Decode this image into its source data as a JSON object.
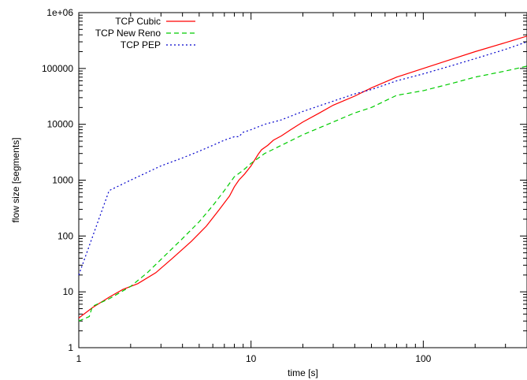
{
  "chart_data": {
    "type": "line",
    "title": "",
    "xlabel": "time [s]",
    "ylabel": "flow size [segments]",
    "xscale": "log",
    "yscale": "log",
    "xlim": [
      1,
      400
    ],
    "ylim": [
      1,
      1000000
    ],
    "x_ticks": [
      {
        "value": 1,
        "label": "1"
      },
      {
        "value": 10,
        "label": "10"
      },
      {
        "value": 100,
        "label": "100"
      }
    ],
    "y_ticks": [
      {
        "value": 1,
        "label": "1"
      },
      {
        "value": 10,
        "label": "10"
      },
      {
        "value": 100,
        "label": "100"
      },
      {
        "value": 1000,
        "label": "1000"
      },
      {
        "value": 10000,
        "label": "10000"
      },
      {
        "value": 100000,
        "label": "100000"
      },
      {
        "value": 1000000,
        "label": "1e+06"
      }
    ],
    "grid": false,
    "legend": "top-left",
    "series": [
      {
        "name": "TCP Cubic",
        "color": "#ff0000",
        "dash": "solid",
        "points": [
          [
            1.0,
            3.4
          ],
          [
            1.2,
            5.2
          ],
          [
            1.5,
            8.0
          ],
          [
            1.8,
            11.0
          ],
          [
            2.2,
            14.0
          ],
          [
            2.8,
            22.0
          ],
          [
            3.5,
            40.0
          ],
          [
            4.5,
            80.0
          ],
          [
            5.5,
            150.0
          ],
          [
            6.5,
            290.0
          ],
          [
            7.5,
            520.0
          ],
          [
            8.0,
            760.0
          ],
          [
            8.5,
            1000.0
          ],
          [
            9.2,
            1300.0
          ],
          [
            10.0,
            1800.0
          ],
          [
            11.0,
            2900.0
          ],
          [
            11.5,
            3500.0
          ],
          [
            12.5,
            4200.0
          ],
          [
            13.5,
            5200.0
          ],
          [
            15.0,
            6200.0
          ],
          [
            17.0,
            8000.0
          ],
          [
            20.0,
            11000.0
          ],
          [
            25.0,
            16000.0
          ],
          [
            30.0,
            22000.0
          ],
          [
            40.0,
            32000.0
          ],
          [
            50.0,
            45000.0
          ],
          [
            70.0,
            70000.0
          ],
          [
            100.0,
            100000.0
          ],
          [
            150.0,
            150000.0
          ],
          [
            200.0,
            200000.0
          ],
          [
            300.0,
            290000.0
          ],
          [
            400.0,
            380000.0
          ]
        ]
      },
      {
        "name": "TCP New Reno",
        "color": "#00cc00",
        "dash": "dashed",
        "points": [
          [
            1.0,
            3.0
          ],
          [
            1.15,
            3.6
          ],
          [
            1.2,
            5.5
          ],
          [
            1.5,
            7.5
          ],
          [
            2.0,
            12.5
          ],
          [
            2.5,
            22.0
          ],
          [
            3.0,
            38.0
          ],
          [
            4.0,
            90.0
          ],
          [
            5.0,
            180.0
          ],
          [
            6.0,
            350.0
          ],
          [
            7.0,
            650.0
          ],
          [
            8.0,
            1150.0
          ],
          [
            9.0,
            1500.0
          ],
          [
            10.0,
            2000.0
          ],
          [
            12.0,
            3000.0
          ],
          [
            15.0,
            4200.0
          ],
          [
            20.0,
            6500.0
          ],
          [
            30.0,
            11000.0
          ],
          [
            40.0,
            16000.0
          ],
          [
            50.0,
            20000.0
          ],
          [
            70.0,
            33000.0
          ],
          [
            100.0,
            40000.0
          ],
          [
            150.0,
            55000.0
          ],
          [
            200.0,
            70000.0
          ],
          [
            300.0,
            90000.0
          ],
          [
            400.0,
            110000.0
          ]
        ]
      },
      {
        "name": "TCP PEP",
        "color": "#0000cc",
        "dash": "dotted",
        "points": [
          [
            1.0,
            20.0
          ],
          [
            1.5,
            650.0
          ],
          [
            2.0,
            1000.0
          ],
          [
            3.0,
            1800.0
          ],
          [
            4.0,
            2500.0
          ],
          [
            5.0,
            3300.0
          ],
          [
            6.0,
            4200.0
          ],
          [
            7.0,
            5200.0
          ],
          [
            8.0,
            6000.0
          ],
          [
            8.5,
            6000.0
          ],
          [
            9.0,
            7200.0
          ],
          [
            10.0,
            8000.0
          ],
          [
            12.0,
            10000.0
          ],
          [
            15.0,
            12000.0
          ],
          [
            20.0,
            17000.0
          ],
          [
            30.0,
            26000.0
          ],
          [
            40.0,
            35000.0
          ],
          [
            50.0,
            42000.0
          ],
          [
            70.0,
            60000.0
          ],
          [
            100.0,
            80000.0
          ],
          [
            150.0,
            115000.0
          ],
          [
            200.0,
            150000.0
          ],
          [
            300.0,
            220000.0
          ],
          [
            400.0,
            300000.0
          ]
        ]
      }
    ]
  }
}
